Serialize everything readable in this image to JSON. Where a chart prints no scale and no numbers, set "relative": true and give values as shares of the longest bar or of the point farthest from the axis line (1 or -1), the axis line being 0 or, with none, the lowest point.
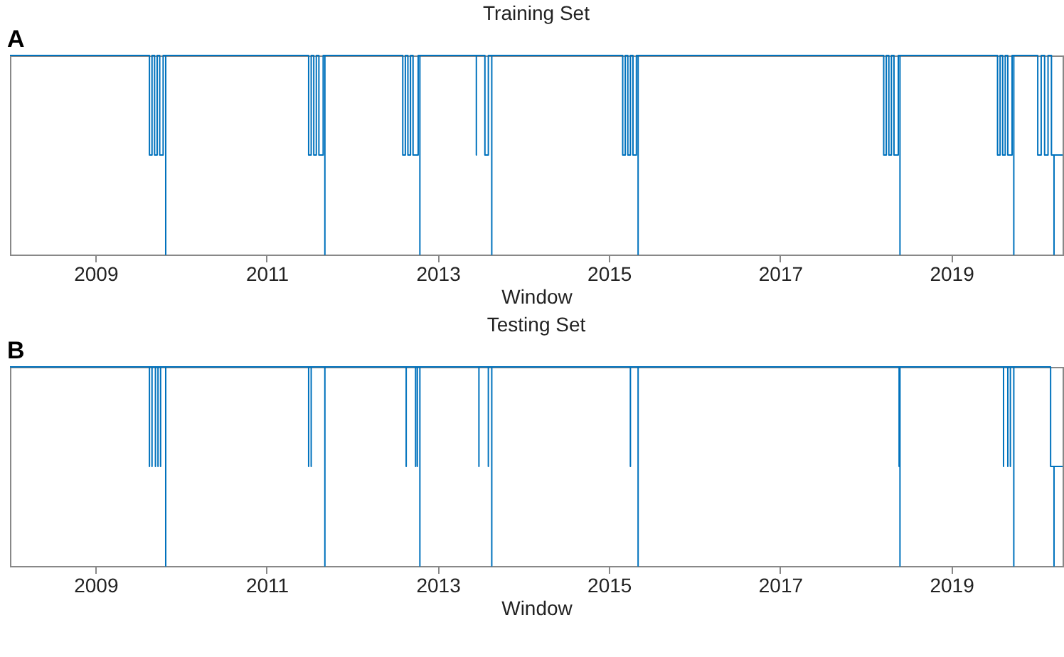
{
  "chart_data": [
    {
      "type": "line",
      "title": "Training Set",
      "xlabel": "Window",
      "annotations": [
        "A"
      ],
      "relative": true,
      "color": "#0072bd",
      "xlim": [
        2008,
        2020.3
      ],
      "xticks": [
        2009,
        2011,
        2013,
        2015,
        2017,
        2019
      ],
      "x": [
        2008,
        2009.63,
        2009.63,
        2009.66,
        2009.66,
        2009.69,
        2009.69,
        2009.72,
        2009.72,
        2009.75,
        2009.75,
        2009.79,
        2009.79,
        2009.82,
        2009.82,
        2009.82,
        2011.49,
        2011.49,
        2011.52,
        2011.52,
        2011.55,
        2011.55,
        2011.58,
        2011.58,
        2011.61,
        2011.61,
        2011.66,
        2011.66,
        2011.68,
        2011.68,
        2011.68,
        2012.59,
        2012.59,
        2012.62,
        2012.62,
        2012.65,
        2012.65,
        2012.68,
        2012.68,
        2012.71,
        2012.71,
        2012.77,
        2012.77,
        2012.79,
        2012.79,
        2012.79,
        2013.45,
        2013.45,
        2013.45,
        2013.55,
        2013.55,
        2013.59,
        2013.59,
        2013.63,
        2013.63,
        2013.63,
        2015.16,
        2015.16,
        2015.19,
        2015.19,
        2015.22,
        2015.22,
        2015.25,
        2015.25,
        2015.28,
        2015.28,
        2015.32,
        2015.32,
        2015.34,
        2015.34,
        2015.34,
        2018.21,
        2018.21,
        2018.24,
        2018.24,
        2018.27,
        2018.27,
        2018.3,
        2018.3,
        2018.33,
        2018.33,
        2018.38,
        2018.38,
        2018.4,
        2018.4,
        2018.4,
        2019.54,
        2019.54,
        2019.57,
        2019.57,
        2019.6,
        2019.6,
        2019.63,
        2019.63,
        2019.66,
        2019.66,
        2019.71,
        2019.71,
        2019.73,
        2019.73,
        2019.73,
        2020.01,
        2020.01,
        2020.05,
        2020.05,
        2020.09,
        2020.09,
        2020.13,
        2020.13,
        2020.17,
        2020.17,
        2020.2,
        2020.2,
        2020.2,
        2020.3
      ],
      "values": [
        1,
        1,
        0.5,
        0.5,
        1,
        1,
        0.5,
        0.5,
        1,
        1,
        0.5,
        0.5,
        1,
        1,
        0,
        1,
        1,
        0.5,
        0.5,
        1,
        1,
        0.5,
        0.5,
        1,
        1,
        0.5,
        0.5,
        1,
        1,
        0,
        1,
        1,
        0.5,
        0.5,
        1,
        1,
        0.5,
        0.5,
        1,
        1,
        0.5,
        0.5,
        1,
        1,
        0,
        1,
        1,
        0.5,
        1,
        1,
        0.5,
        0.5,
        1,
        1,
        0,
        1,
        1,
        0.5,
        0.5,
        1,
        1,
        0.5,
        0.5,
        1,
        1,
        0.5,
        0.5,
        1,
        1,
        0,
        1,
        1,
        0.5,
        0.5,
        1,
        1,
        0.5,
        0.5,
        1,
        1,
        0.5,
        0.5,
        1,
        1,
        0,
        1,
        1,
        0.5,
        0.5,
        1,
        1,
        0.5,
        0.5,
        1,
        1,
        0.5,
        0.5,
        1,
        1,
        0,
        1,
        1,
        0.5,
        0.5,
        1,
        1,
        0.5,
        0.5,
        1,
        1,
        0.5,
        0.5,
        0,
        0.5,
        0.5
      ]
    },
    {
      "type": "line",
      "title": "Testing Set",
      "xlabel": "Window",
      "annotations": [
        "B"
      ],
      "relative": true,
      "color": "#0072bd",
      "xlim": [
        2008,
        2020.3
      ],
      "xticks": [
        2009,
        2011,
        2013,
        2015,
        2017,
        2019
      ],
      "x": [
        2008,
        2009.63,
        2009.63,
        2009.63,
        2009.66,
        2009.66,
        2009.66,
        2009.7,
        2009.7,
        2009.7,
        2009.73,
        2009.73,
        2009.73,
        2009.76,
        2009.76,
        2009.76,
        2009.82,
        2009.82,
        2009.82,
        2011.49,
        2011.49,
        2011.49,
        2011.52,
        2011.52,
        2011.52,
        2011.68,
        2011.68,
        2011.68,
        2012.63,
        2012.63,
        2012.63,
        2012.74,
        2012.74,
        2012.74,
        2012.76,
        2012.76,
        2012.76,
        2012.79,
        2012.79,
        2012.79,
        2013.48,
        2013.48,
        2013.48,
        2013.59,
        2013.59,
        2013.59,
        2013.63,
        2013.63,
        2013.63,
        2015.25,
        2015.25,
        2015.25,
        2015.34,
        2015.34,
        2015.34,
        2018.39,
        2018.39,
        2018.39,
        2018.4,
        2018.4,
        2018.4,
        2019.61,
        2019.61,
        2019.61,
        2019.66,
        2019.66,
        2019.66,
        2019.69,
        2019.69,
        2019.69,
        2019.73,
        2019.73,
        2019.73,
        2020.16,
        2020.16,
        2020.2,
        2020.2,
        2020.2,
        2020.3
      ],
      "values": [
        1,
        1,
        0.5,
        1,
        1,
        0.5,
        1,
        1,
        0.5,
        1,
        1,
        0.5,
        1,
        1,
        0.5,
        1,
        1,
        0,
        1,
        1,
        0.5,
        1,
        1,
        0.5,
        1,
        1,
        0,
        1,
        1,
        0.5,
        1,
        1,
        0.5,
        1,
        1,
        0.5,
        1,
        1,
        0,
        1,
        1,
        0.5,
        1,
        1,
        0.5,
        1,
        1,
        0,
        1,
        1,
        0.5,
        1,
        1,
        0,
        1,
        1,
        0.5,
        1,
        1,
        0,
        1,
        1,
        0.5,
        1,
        1,
        0.5,
        1,
        1,
        0.5,
        1,
        1,
        0,
        1,
        1,
        0.5,
        0.5,
        0,
        0.5,
        0.5
      ]
    }
  ]
}
